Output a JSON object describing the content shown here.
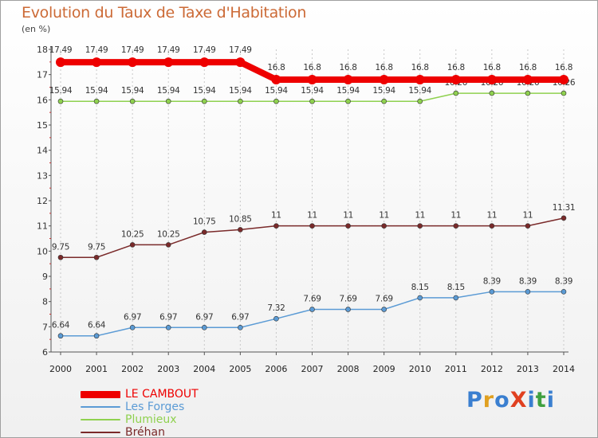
{
  "title": "Evolution du Taux de Taxe d'Habitation",
  "subtitle": "(en %)",
  "logo": {
    "text": "ProXiti",
    "colors": [
      "#3a7fd0",
      "#e0a020",
      "#3a7fd0",
      "#e04020",
      "#3a7fd0",
      "#40a040",
      "#3a7fd0"
    ]
  },
  "chart_data": {
    "type": "line",
    "x": [
      2000,
      2001,
      2002,
      2003,
      2004,
      2005,
      2006,
      2007,
      2008,
      2009,
      2010,
      2011,
      2012,
      2013,
      2014
    ],
    "ylim": [
      6,
      18
    ],
    "yticks": [
      6,
      7,
      8,
      9,
      10,
      11,
      12,
      13,
      14,
      15,
      16,
      17,
      18
    ],
    "grid": "vertical-dashed",
    "legend_position": "bottom-left",
    "series": [
      {
        "name": "LE CAMBOUT",
        "color": "#ee0000",
        "values": [
          17.49,
          17.49,
          17.49,
          17.49,
          17.49,
          17.49,
          16.8,
          16.8,
          16.8,
          16.8,
          16.8,
          16.8,
          16.8,
          16.8,
          16.8
        ],
        "labels": [
          "17.49",
          "17.49",
          "17.49",
          "17.49",
          "17.49",
          "17.49",
          "16.8",
          "16.8",
          "16.8",
          "16.8",
          "16.8",
          "16.8",
          "16.8",
          "16.8",
          "16.8"
        ]
      },
      {
        "name": "Les Forges",
        "color": "#5b9bd5",
        "values": [
          6.64,
          6.64,
          6.97,
          6.97,
          6.97,
          6.97,
          7.32,
          7.69,
          7.69,
          7.69,
          8.15,
          8.15,
          8.39,
          8.39,
          8.39
        ],
        "labels": [
          "6.64",
          "6.64",
          "6.97",
          "6.97",
          "6.97",
          "6.97",
          "7.32",
          "7.69",
          "7.69",
          "7.69",
          "8.15",
          "8.15",
          "8.39",
          "8.39",
          "8.39"
        ]
      },
      {
        "name": "Plumieux",
        "color": "#8fd14f",
        "values": [
          15.94,
          15.94,
          15.94,
          15.94,
          15.94,
          15.94,
          15.94,
          15.94,
          15.94,
          15.94,
          15.94,
          16.26,
          16.26,
          16.26,
          16.26
        ],
        "labels": [
          "15.94",
          "15.94",
          "15.94",
          "15.94",
          "15.94",
          "15.94",
          "15.94",
          "15.94",
          "15.94",
          "15.94",
          "15.94",
          "16.26",
          "16.26",
          "16.26",
          "16.26"
        ]
      },
      {
        "name": "Bréhan",
        "color": "#7a2a2a",
        "values": [
          9.75,
          9.75,
          10.25,
          10.25,
          10.75,
          10.85,
          11,
          11,
          11,
          11,
          11,
          11,
          11,
          11,
          11.31
        ],
        "labels": [
          "9.75",
          "9.75",
          "10.25",
          "10.25",
          "10.75",
          "10.85",
          "11",
          "11",
          "11",
          "11",
          "11",
          "11",
          "11",
          "11",
          "11.31"
        ]
      }
    ]
  }
}
